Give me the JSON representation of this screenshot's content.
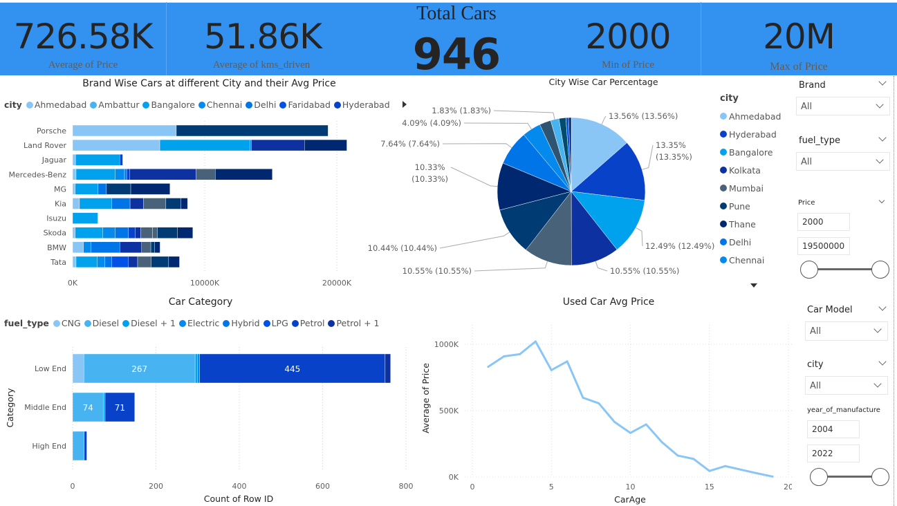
{
  "kpis": {
    "avg_price": {
      "value": "726.58K",
      "label": "Average of Price"
    },
    "avg_kms": {
      "value": "51.86K",
      "label": "Average of kms_driven"
    },
    "total_cars": {
      "title": "Total Cars",
      "value": "946"
    },
    "min_price": {
      "value": "2000",
      "label": "Min of Price"
    },
    "max_price": {
      "value": "20M",
      "label": "Max of Price"
    }
  },
  "colors": {
    "banner": "#3391F0",
    "Ahmedabad": "#8AC6F5",
    "Ambattur": "#47B3F0",
    "Bangalore": "#00A2EE",
    "Chennai": "#0489ED",
    "Delhi": "#0075E8",
    "Faridabad": "#0051E6",
    "Hyderabad": "#0842C8",
    "Kolkata": "#0D31A0",
    "Mumbai": "#486279",
    "Pune": "#003C73",
    "Thane": "#002870",
    "line": "#8AC6F5"
  },
  "chart_data": [
    {
      "id": "brand",
      "type": "bar",
      "orientation": "horizontal",
      "stacked": true,
      "title": "Brand Wise Cars at different City and their Avg Price",
      "legend_title": "city",
      "legend": [
        "Ahmedabad",
        "Ambattur",
        "Bangalore",
        "Chennai",
        "Delhi",
        "Faridabad",
        "Hyderabad"
      ],
      "legend_more_icon": "triangle-right-icon",
      "xlim": [
        0,
        26000000
      ],
      "xticks": [
        {
          "v": 0,
          "label": "0K"
        },
        {
          "v": 10000000,
          "label": "10000K"
        },
        {
          "v": 20000000,
          "label": "20000K"
        }
      ],
      "categories": [
        "Porsche",
        "Land Rover",
        "Jaguar",
        "Mercedes-Benz",
        "MG",
        "Kia",
        "Isuzu",
        "Skoda",
        "BMW",
        "Tata"
      ],
      "segments": [
        [
          [
            "Ahmedabad",
            7850000
          ],
          [
            "Pune",
            11490000
          ]
        ],
        [
          [
            "Ahmedabad",
            6600000
          ],
          [
            "Bangalore",
            6830000
          ],
          [
            "Delhi",
            100000
          ],
          [
            "Kolkata",
            4020000
          ],
          [
            "Thane",
            3210000
          ]
        ],
        [
          [
            "Ahmedabad",
            220000
          ],
          [
            "Bangalore",
            3350000
          ],
          [
            "Hyderabad",
            220000
          ]
        ],
        [
          [
            "Ahmedabad",
            260000
          ],
          [
            "Bangalore",
            2970000
          ],
          [
            "Chennai",
            700000
          ],
          [
            "Delhi",
            160000
          ],
          [
            "Hyderabad",
            240000
          ],
          [
            "Kolkata",
            5020000
          ],
          [
            "Mumbai",
            1450000
          ],
          [
            "Thane",
            4320000
          ]
        ],
        [
          [
            "Ahmedabad",
            200000
          ],
          [
            "Bangalore",
            1730000
          ],
          [
            "Delhi",
            620000
          ],
          [
            "Pune",
            1850000
          ],
          [
            "Thane",
            2970000
          ]
        ],
        [
          [
            "Ahmedabad",
            520000
          ],
          [
            "Bangalore",
            2430000
          ],
          [
            "Delhi",
            1400000
          ],
          [
            "Kolkata",
            1020000
          ],
          [
            "Mumbai",
            1690000
          ],
          [
            "Pune",
            1140000
          ],
          [
            "Thane",
            500000
          ]
        ],
        [
          [
            "Bangalore",
            1910000
          ]
        ],
        [
          [
            "Ahmedabad",
            200000
          ],
          [
            "Bangalore",
            2090000
          ],
          [
            "Chennai",
            940000
          ],
          [
            "Delhi",
            1000000
          ],
          [
            "Hyderabad",
            520000
          ],
          [
            "Kolkata",
            400000
          ],
          [
            "Mumbai",
            900000
          ],
          [
            "Mumbai",
            360000
          ],
          [
            "Pune",
            1530000
          ],
          [
            "Thane",
            1160000
          ]
        ],
        [
          [
            "Ahmedabad",
            820000
          ],
          [
            "Chennai",
            560000
          ],
          [
            "Delhi",
            2190000
          ],
          [
            "Kolkata",
            1650000
          ],
          [
            "Mumbai",
            700000
          ],
          [
            "Pune",
            300000
          ],
          [
            "Thane",
            400000
          ]
        ],
        [
          [
            "Ahmedabad",
            260000
          ],
          [
            "Bangalore",
            1610000
          ],
          [
            "Chennai",
            580000
          ],
          [
            "Delhi",
            500000
          ],
          [
            "Faridabad",
            1250000
          ],
          [
            "Kolkata",
            720000
          ],
          [
            "Mumbai",
            1020000
          ],
          [
            "Pune",
            1330000
          ],
          [
            "Thane",
            820000
          ]
        ]
      ],
      "grid": true
    },
    {
      "id": "pie",
      "type": "pie",
      "title": "City Wise Car Percentage",
      "legend_title": "city",
      "legend": [
        "Ahmedabad",
        "Hyderabad",
        "Bangalore",
        "Kolkata",
        "Mumbai",
        "Pune",
        "Thane",
        "Delhi",
        "Chennai"
      ],
      "legend_more_icon": "triangle-down-icon",
      "slices": [
        {
          "city": "Ahmedabad",
          "value": 13.56,
          "label": "13.56% (13.56%)"
        },
        {
          "city": "Hyderabad",
          "value": 13.35,
          "label": "13.35%|(13.35%)"
        },
        {
          "city": "Bangalore",
          "value": 12.49,
          "label": "12.49% (12.49%)"
        },
        {
          "city": "Kolkata",
          "value": 10.55,
          "label": "10.55% (10.55%)"
        },
        {
          "city": "Mumbai",
          "value": 10.55,
          "label": "10.55% (10.55%)"
        },
        {
          "city": "Pune",
          "value": 10.44,
          "label": "10.44% (10.44%)"
        },
        {
          "city": "Thane",
          "value": 10.33,
          "label": "10.33%|(10.33%)"
        },
        {
          "city": "Delhi",
          "value": 7.64,
          "label": "7.64% (7.64%)"
        },
        {
          "city": "Chennai",
          "value": 4.09,
          "label": "4.09% (4.09%)"
        },
        {
          "city": "",
          "value": 2.5,
          "label": "",
          "color": "#2F5470"
        },
        {
          "city": "",
          "value": 1.83,
          "label": "1.83% (1.83%)",
          "color": "#47B3F0"
        },
        {
          "city": "",
          "value": 1.5,
          "label": "",
          "color": "#004C6A"
        },
        {
          "city": "",
          "value": 0.6,
          "label": "",
          "color": "#0051E6"
        },
        {
          "city": "",
          "value": 0.57,
          "label": "",
          "color": "#002870"
        }
      ]
    },
    {
      "id": "category",
      "type": "bar",
      "orientation": "horizontal",
      "stacked": true,
      "title": "Car Category",
      "legend_title": "fuel_type",
      "legend": [
        "CNG",
        "Diesel",
        "Diesel + 1",
        "Electric",
        "Hybrid",
        "LPG",
        "Petrol",
        "Petrol + 1"
      ],
      "legend_colors": [
        "#8AC6F5",
        "#47B3F0",
        "#00A2EE",
        "#0489ED",
        "#0075E8",
        "#0051E6",
        "#0842C8",
        "#0D31A0"
      ],
      "xlabel": "Count of Row ID",
      "ylabel": "Category",
      "xlim": [
        0,
        800
      ],
      "xticks": [
        0,
        200,
        400,
        600,
        800
      ],
      "categories": [
        "Low End",
        "Middle End",
        "High End"
      ],
      "segments": [
        [
          [
            "CNG",
            27,
            ""
          ],
          [
            "Diesel",
            267,
            "267"
          ],
          [
            "Diesel + 1",
            6,
            ""
          ],
          [
            "Electric",
            5,
            ""
          ],
          [
            "Petrol",
            445,
            "445"
          ],
          [
            "Petrol + 1",
            13,
            ""
          ]
        ],
        [
          [
            "Diesel",
            74,
            "74"
          ],
          [
            "Diesel + 1",
            4,
            ""
          ],
          [
            "Petrol",
            71,
            "71"
          ]
        ],
        [
          [
            "Diesel",
            28,
            ""
          ],
          [
            "Petrol",
            6,
            ""
          ]
        ]
      ],
      "grid": true
    },
    {
      "id": "line",
      "type": "line",
      "title": "Used Car Avg Price",
      "xlabel": "CarAge",
      "ylabel": "Average of Price",
      "xlim": [
        0,
        20
      ],
      "ylim": [
        0,
        1200000
      ],
      "xticks": [
        0,
        5,
        10,
        15,
        20
      ],
      "yticks": [
        {
          "v": 0,
          "label": "0K"
        },
        {
          "v": 500000,
          "label": "500K"
        },
        {
          "v": 1000000,
          "label": "1000K"
        }
      ],
      "x": [
        1,
        2,
        3,
        4,
        5,
        6,
        7,
        8,
        9,
        10,
        11,
        12,
        13,
        14,
        15,
        16,
        17,
        18,
        19
      ],
      "y": [
        830000,
        909000,
        925000,
        1021000,
        805000,
        871000,
        597000,
        555000,
        414000,
        332000,
        396000,
        262000,
        161000,
        136000,
        45000,
        82000,
        55000,
        28000,
        3000
      ],
      "grid": true
    }
  ],
  "slicers": {
    "brand": {
      "label": "Brand",
      "value": "All"
    },
    "fuel_type": {
      "label": "fuel_type",
      "value": "All"
    },
    "price": {
      "label": "Price",
      "min": "2000",
      "max": "19500000"
    },
    "car_model": {
      "label": "Car Model",
      "value": "All"
    },
    "city": {
      "label": "city",
      "value": "All"
    },
    "year": {
      "label": "year_of_manufacture",
      "min": "2004",
      "max": "2022"
    }
  }
}
